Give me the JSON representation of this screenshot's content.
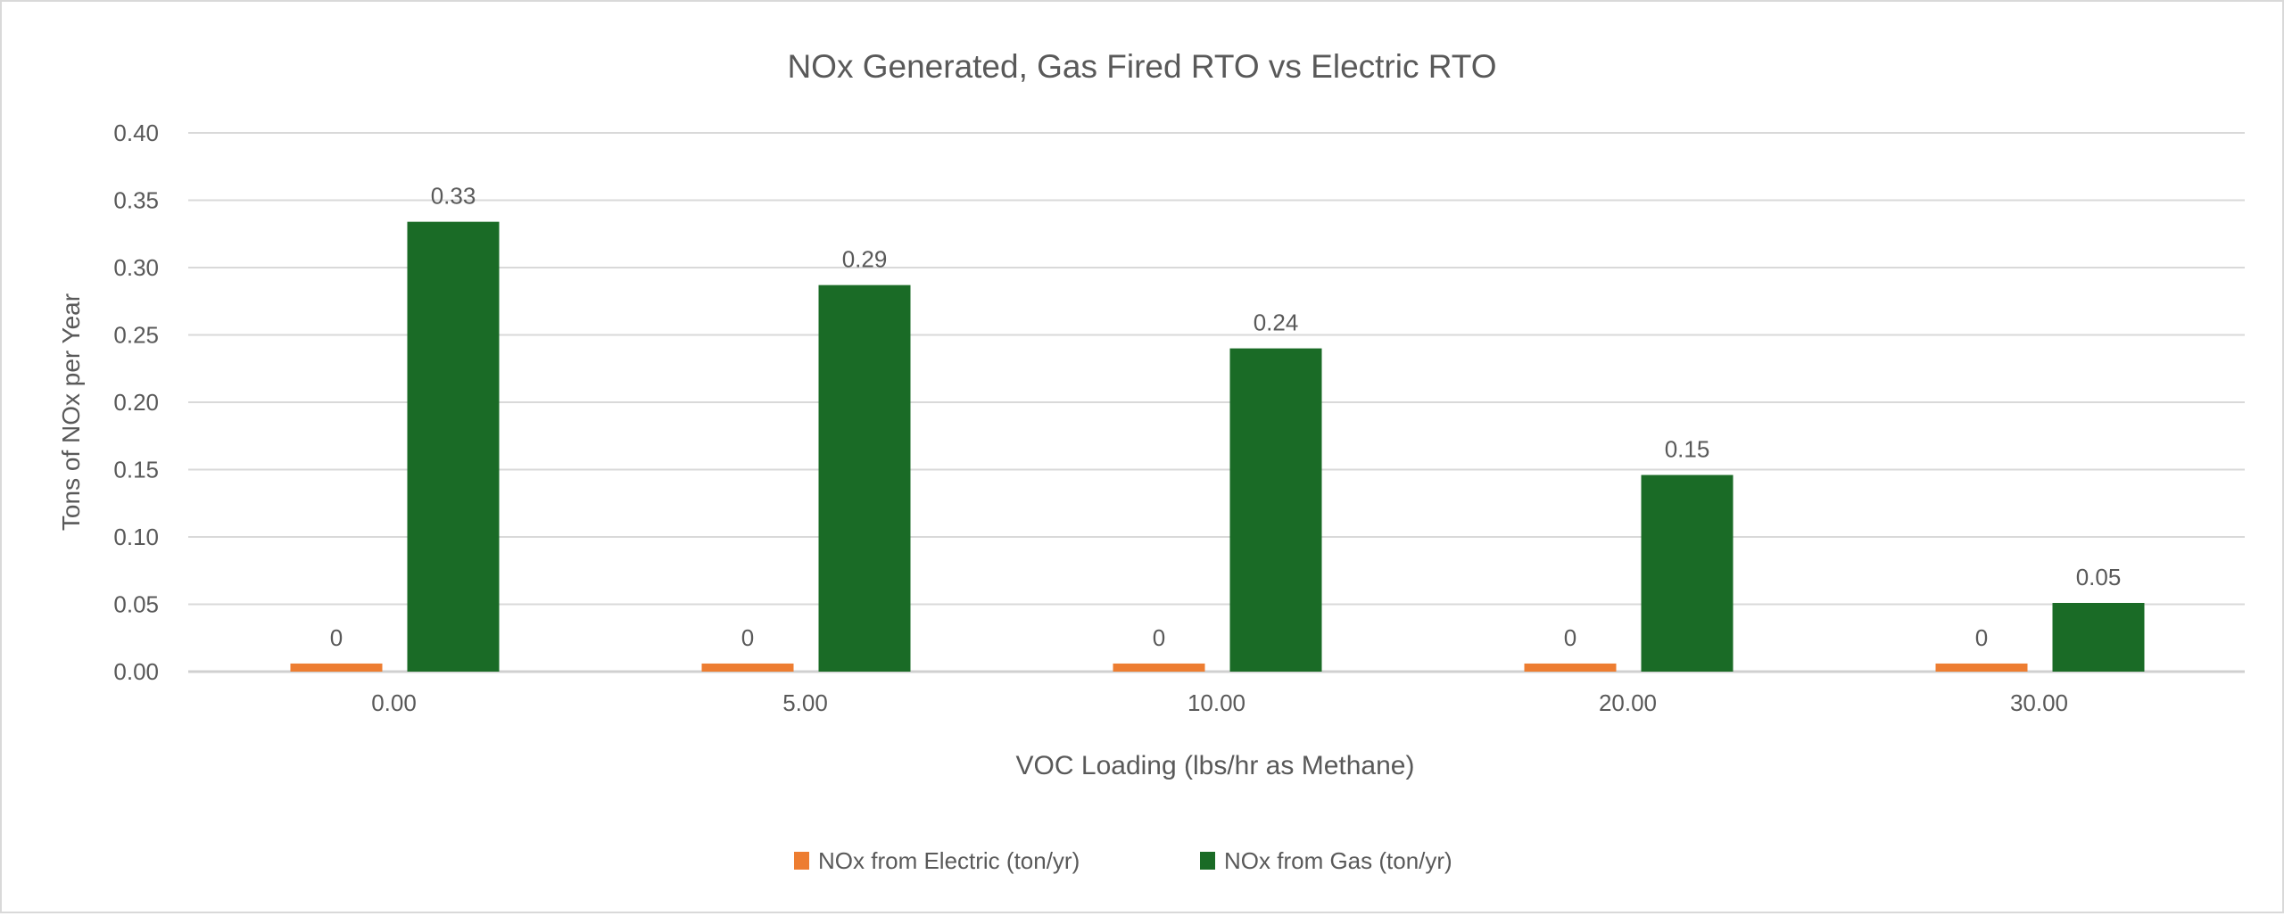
{
  "chart_data": {
    "type": "bar",
    "title": "NOx Generated, Gas Fired RTO vs Electric RTO",
    "xlabel": "VOC Loading (lbs/hr as Methane)",
    "ylabel": "Tons of NOx  per Year",
    "categories": [
      "0.00",
      "5.00",
      "10.00",
      "20.00",
      "30.00"
    ],
    "ylim": [
      0,
      0.4
    ],
    "yticks": [
      "0.00",
      "0.05",
      "0.10",
      "0.15",
      "0.20",
      "0.25",
      "0.30",
      "0.35",
      "0.40"
    ],
    "grid": true,
    "legend_position": "bottom",
    "series": [
      {
        "name": "NOx from Electric (ton/yr)",
        "color": "#ed7d31",
        "values": [
          0.006,
          0.006,
          0.006,
          0.006,
          0.006
        ],
        "labels": [
          "0",
          "0",
          "0",
          "0",
          "0"
        ]
      },
      {
        "name": "NOx from Gas (ton/yr)",
        "color": "#1a6b26",
        "values": [
          0.334,
          0.287,
          0.24,
          0.146,
          0.051
        ],
        "labels": [
          "0.33",
          "0.29",
          "0.24",
          "0.15",
          "0.05"
        ]
      }
    ]
  }
}
